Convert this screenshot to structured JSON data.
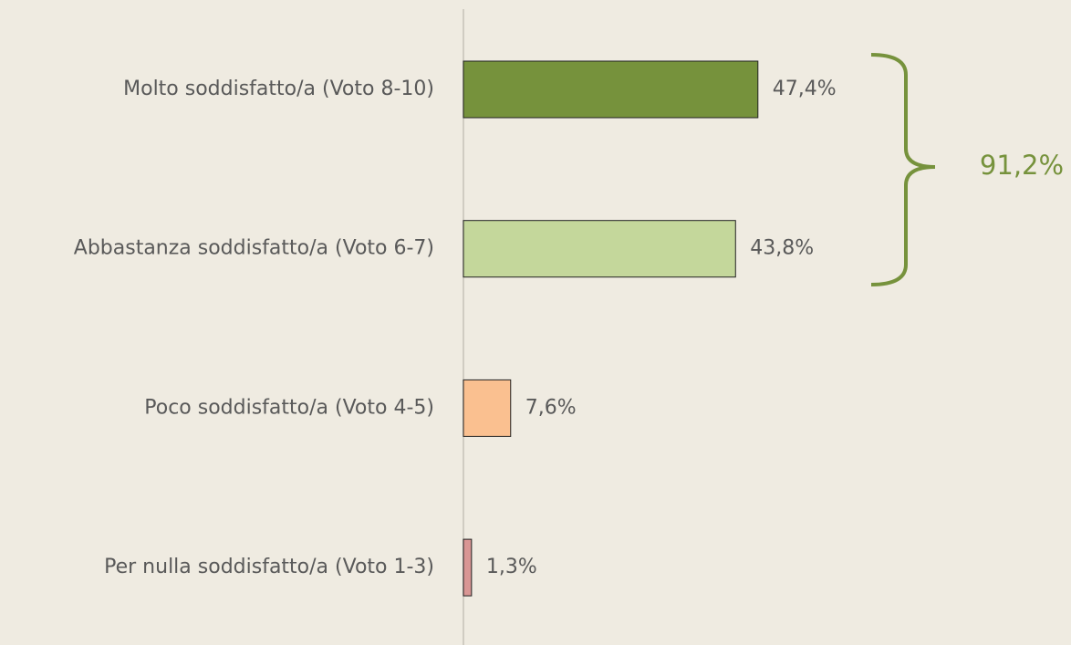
{
  "chart_data": {
    "type": "hbar",
    "categories": [
      "Molto soddisfatto/a (Voto 8-10)",
      "Abbastanza soddisfatto/a (Voto 6-7)",
      "Poco soddisfatto/a (Voto 4-5)",
      "Per nulla soddisfatto/a (Voto 1-3)"
    ],
    "values": [
      47.4,
      43.8,
      7.6,
      1.3
    ],
    "value_labels": [
      "47,4%",
      "43,8%",
      "7,6%",
      "1,3%"
    ],
    "colors": [
      "#76923c",
      "#c4d79b",
      "#fac090",
      "#d99694"
    ],
    "xlim": [
      0,
      100
    ],
    "annotation": "91,2%"
  }
}
